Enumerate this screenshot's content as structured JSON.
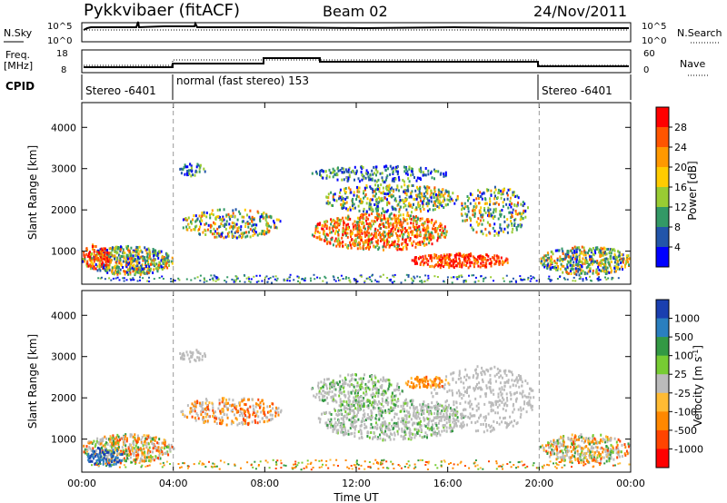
{
  "header": {
    "title": "Pykkvibaer (fitACF)",
    "beam": "Beam 02",
    "date": "24/Nov/2011"
  },
  "strips": {
    "nsky_label": "N.Sky",
    "nsky_ticks": [
      "10^5",
      "10^0"
    ],
    "nsearch_label": "N.Search",
    "nsearch_ticks": [
      "10^5",
      "10^0"
    ],
    "freq_label_line1": "Freq.",
    "freq_label_line2": "[MHz]",
    "freq_ticks": [
      "18",
      "8"
    ],
    "nave_label": "Nave",
    "nave_ticks": [
      "60",
      "0"
    ],
    "cpid_label": "CPID",
    "cpid_segments": [
      "Stereo -6401",
      "normal (fast stereo) 153",
      "Stereo -6401"
    ]
  },
  "chart_data": [
    {
      "type": "heatmap",
      "title": "",
      "quantity": "Power",
      "xlabel": "",
      "ylabel": "Slant Range [km]",
      "x_range_hours": [
        0,
        24
      ],
      "ylim": [
        200,
        4600
      ],
      "yticks": [
        "1000",
        "2000",
        "3000",
        "4000"
      ],
      "colorbar_label": "Power [dB]",
      "colorbar_ticks": [
        "28",
        "24",
        "20",
        "16",
        "12",
        "8",
        "4"
      ],
      "colorbar_colors": [
        "#ff0000",
        "#ff5500",
        "#ff9900",
        "#ffcc00",
        "#99cc33",
        "#339966",
        "#2255aa",
        "#0000ff"
      ]
    },
    {
      "type": "heatmap",
      "title": "",
      "quantity": "Velocity",
      "xlabel": "Time UT",
      "ylabel": "Slant Range [km]",
      "x_range_hours": [
        0,
        24
      ],
      "ylim": [
        200,
        4600
      ],
      "xticks": [
        "00:00",
        "04:00",
        "08:00",
        "12:00",
        "16:00",
        "20:00",
        "00:00"
      ],
      "yticks": [
        "1000",
        "2000",
        "3000",
        "4000"
      ],
      "colorbar_label_main": "Velocity ",
      "colorbar_label_unit": "[m s",
      "colorbar_label_sup": "-1",
      "colorbar_label_close": "]",
      "colorbar_ticks": [
        "1000",
        "500",
        "100",
        "25",
        "-25",
        "-100",
        "-500",
        "-1000"
      ],
      "colorbar_colors": [
        "#1a3fb0",
        "#2a7fbf",
        "#339944",
        "#77cc33",
        "#bbbbbb",
        "#ffbb33",
        "#ff8800",
        "#ff4400",
        "#ff0000"
      ]
    }
  ]
}
